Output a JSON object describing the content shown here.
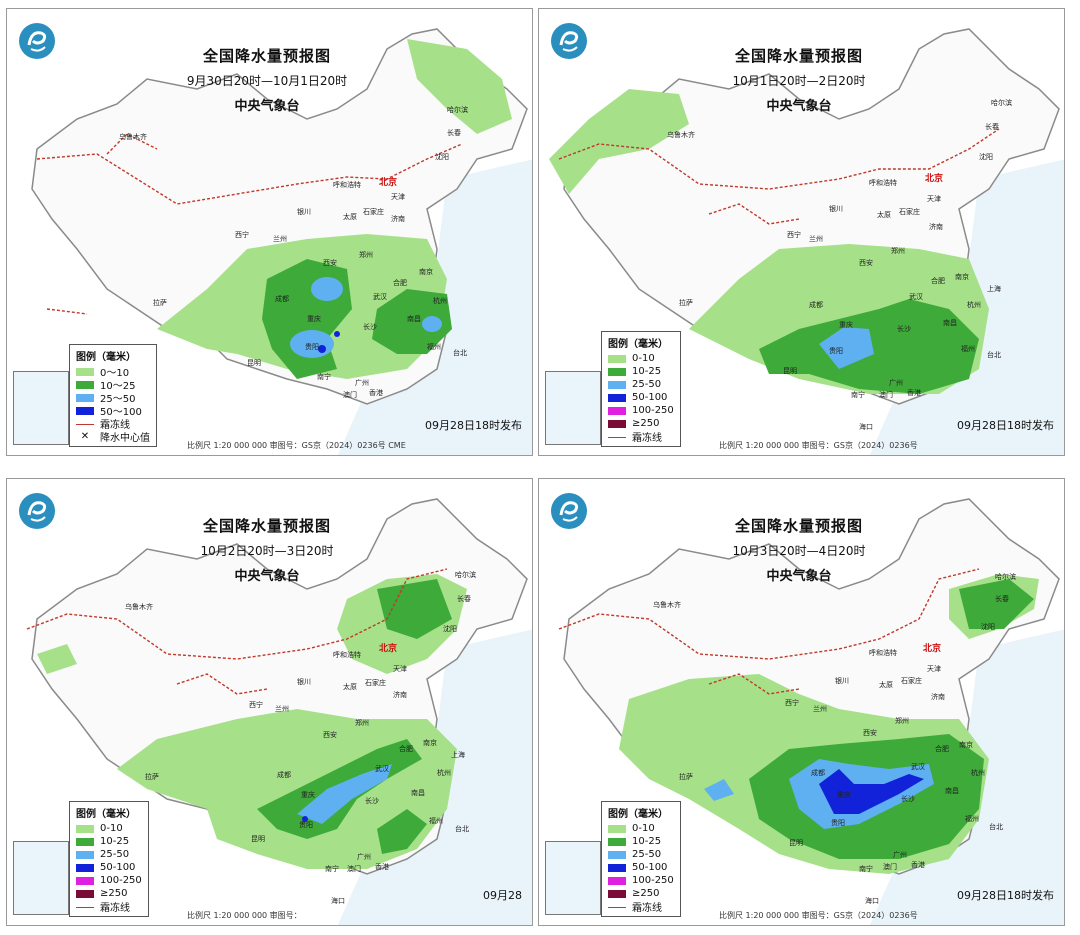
{
  "legend_common": {
    "frost_label": "霜冻线",
    "center_label": "降水中心值"
  },
  "panels": [
    {
      "title": "全国降水量预报图",
      "period": "9月30日20时—10月1日20时",
      "agency": "中央气象台",
      "legend_title": "图例（毫米）",
      "legend": [
        {
          "label": "0～10",
          "color": "#a6e18a"
        },
        {
          "label": "10～25",
          "color": "#3daa3a"
        },
        {
          "label": "25～50",
          "color": "#5fb0f0"
        },
        {
          "label": "50～100",
          "color": "#1222d8"
        }
      ],
      "issue": "09月28日18时发布",
      "footer": "比例尺 1:20 000 000    审图号：GS京（2024）0236号 CME"
    },
    {
      "title": "全国降水量预报图",
      "period": "10月1日20时—2日20时",
      "agency": "中央气象台",
      "legend_title": "图例（毫米）",
      "legend": [
        {
          "label": "0-10",
          "color": "#a6e18a"
        },
        {
          "label": "10-25",
          "color": "#3daa3a"
        },
        {
          "label": "25-50",
          "color": "#5fb0f0"
        },
        {
          "label": "50-100",
          "color": "#1222d8"
        },
        {
          "label": "100-250",
          "color": "#e020e0"
        },
        {
          "label": "≥250",
          "color": "#7a0a36"
        }
      ],
      "issue": "09月28日18时发布",
      "footer": "比例尺 1:20 000 000    审图号：GS京（2024）0236号"
    },
    {
      "title": "全国降水量预报图",
      "period": "10月2日20时—3日20时",
      "agency": "中央气象台",
      "legend_title": "图例（毫米）",
      "legend": [
        {
          "label": "0-10",
          "color": "#a6e18a"
        },
        {
          "label": "10-25",
          "color": "#3daa3a"
        },
        {
          "label": "25-50",
          "color": "#5fb0f0"
        },
        {
          "label": "50-100",
          "color": "#1222d8"
        },
        {
          "label": "100-250",
          "color": "#e020e0"
        },
        {
          "label": "≥250",
          "color": "#7a0a36"
        }
      ],
      "issue": "09月28",
      "footer": "比例尺 1:20 000 000    审图号："
    },
    {
      "title": "全国降水量预报图",
      "period": "10月3日20时—4日20时",
      "agency": "中央气象台",
      "legend_title": "图例（毫米）",
      "legend": [
        {
          "label": "0-10",
          "color": "#a6e18a"
        },
        {
          "label": "10-25",
          "color": "#3daa3a"
        },
        {
          "label": "25-50",
          "color": "#5fb0f0"
        },
        {
          "label": "50-100",
          "color": "#1222d8"
        },
        {
          "label": "100-250",
          "color": "#e020e0"
        },
        {
          "label": "≥250",
          "color": "#7a0a36"
        }
      ],
      "issue": "09月28日18时发布",
      "footer": "比例尺 1:20 000 000    审图号：GS京（2024）0236号"
    }
  ],
  "cities": {
    "beijing": "北京",
    "urumqi": "乌鲁木齐",
    "harbin": "哈尔滨",
    "changchun": "长春",
    "shenyang": "沈阳",
    "hohhot": "呼和浩特",
    "tianjin": "天津",
    "taiyuan": "太原",
    "shijiazhuang": "石家庄",
    "jinan": "济南",
    "yinchuan": "银川",
    "lanzhou": "兰州",
    "xining": "西宁",
    "xian": "西安",
    "zhengzhou": "郑州",
    "hefei": "合肥",
    "nanjing": "南京",
    "shanghai": "上海",
    "wuhan": "武汉",
    "hangzhou": "杭州",
    "chengdu": "成都",
    "chongqing": "重庆",
    "changsha": "长沙",
    "nanchang": "南昌",
    "fuzhou": "福州",
    "guiyang": "贵阳",
    "kunming": "昆明",
    "nanning": "南宁",
    "guangzhou": "广州",
    "hongkong": "香港",
    "macau": "澳门",
    "taipei": "台北",
    "haikou": "海口",
    "lhasa": "拉萨"
  }
}
